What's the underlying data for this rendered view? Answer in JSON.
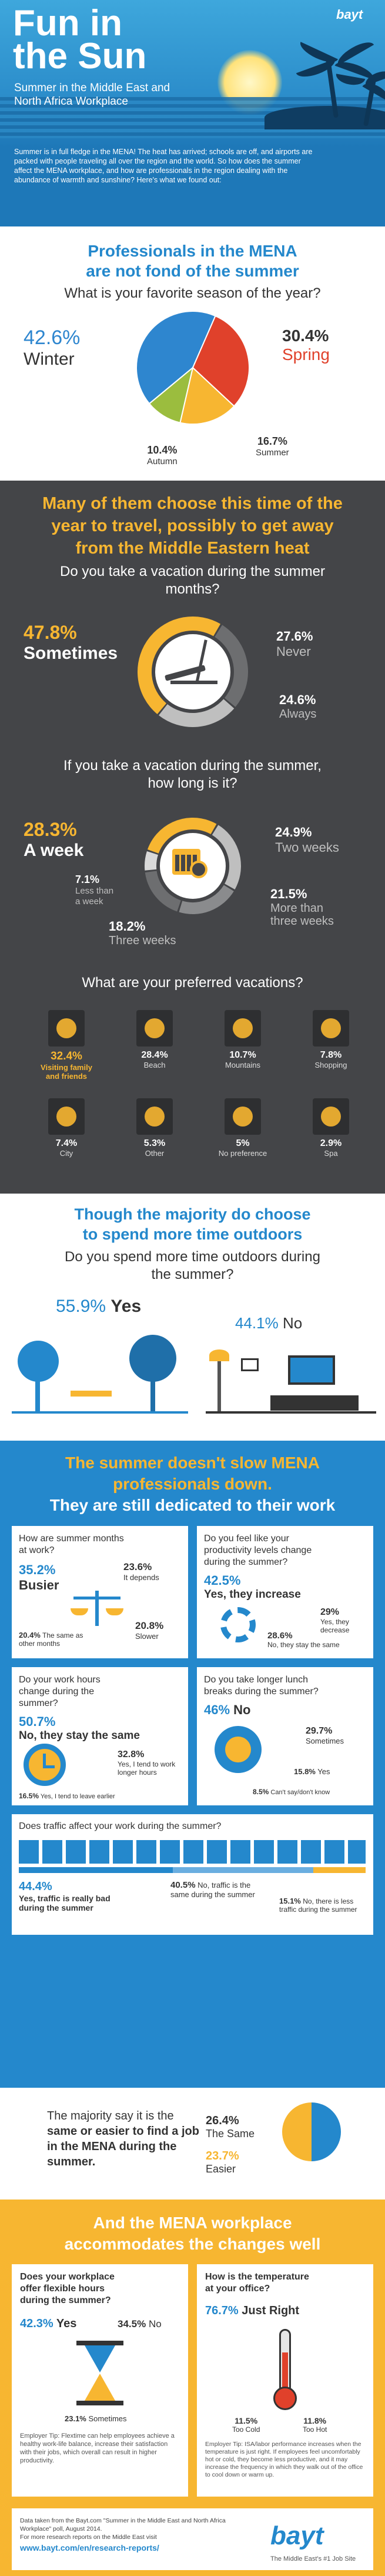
{
  "header": {
    "title_line1": "Fun in",
    "title_line2": "the Sun",
    "subtitle": "Summer in the Middle East and North Africa Workplace",
    "logo": "bayt",
    "intro": "Summer is in full fledge in the MENA! The heat has arrived; schools are off, and airports are packed with people traveling all over the region and the world. So how does the summer affect the MENA workplace, and how are professionals in the region dealing with the abundance of warmth and sunshine? Here's what we found out:"
  },
  "season": {
    "title_line1": "Professionals in the MENA",
    "title_line2": "are not fond of the summer",
    "question": "What is your favorite season of the year?",
    "colors": {
      "winter": "#2e86cf",
      "spring": "#e0412b",
      "summer": "#f7b631",
      "autumn": "#9bbd3e"
    },
    "winter_pct": "42.6%",
    "winter_label": "Winter",
    "spring_pct": "30.4%",
    "spring_label": "Spring",
    "summer_pct": "16.7%",
    "summer_label": "Summer",
    "autumn_pct": "10.4%",
    "autumn_label": "Autumn",
    "values": [
      42.6,
      30.4,
      16.7,
      10.4
    ]
  },
  "vacation": {
    "title_line1": "Many of them choose this time of the",
    "title_line2": "year to travel, possibly to get away",
    "title_line3": "from the Middle Eastern heat",
    "q1_line1": "Do you take a vacation during the summer",
    "q1_line2": "months?",
    "sometimes_pct": "47.8%",
    "sometimes_label": "Sometimes",
    "never_pct": "27.6%",
    "never_label": "Never",
    "always_pct": "24.6%",
    "always_label": "Always",
    "q1_values": [
      47.8,
      27.6,
      24.6
    ],
    "q2_line1": "If you take a vacation during the summer,",
    "q2_line2": "how long is it?",
    "week_pct": "28.3%",
    "week_label": "A week",
    "two_weeks_pct": "24.9%",
    "two_weeks_label": "Two weeks",
    "less_week_pct": "7.1%",
    "less_week_line1": "Less than",
    "less_week_line2": "a week",
    "more_three_pct": "21.5%",
    "more_three_line1": "More than",
    "more_three_line2": "three weeks",
    "three_weeks_pct": "18.2%",
    "three_weeks_label": "Three weeks",
    "q2_values": [
      28.3,
      24.9,
      21.5,
      18.2,
      7.1
    ],
    "q3": "What are your preferred vacations?",
    "prefs": [
      {
        "pct": "32.4%",
        "label": "Visiting family and friends",
        "icon": "family-icon"
      },
      {
        "pct": "28.4%",
        "label": "Beach",
        "icon": "beach-umbrella-icon"
      },
      {
        "pct": "10.7%",
        "label": "Mountains",
        "icon": "mountain-icon"
      },
      {
        "pct": "7.8%",
        "label": "Shopping",
        "icon": "shopping-bag-icon"
      },
      {
        "pct": "7.4%",
        "label": "City",
        "icon": "city-icon"
      },
      {
        "pct": "5.3%",
        "label": "Other",
        "icon": "question-icon"
      },
      {
        "pct": "5%",
        "label": "No preference",
        "icon": "no-sign-icon"
      },
      {
        "pct": "2.9%",
        "label": "Spa",
        "icon": "spa-icon"
      }
    ]
  },
  "outdoors": {
    "title_line1": "Though the majority do choose",
    "title_line2": "to spend more time outdoors",
    "question_line1": "Do you spend more time outdoors during",
    "question_line2": "the summer?",
    "yes_pct": "55.9%",
    "yes_label": "Yes",
    "no_pct": "44.1%",
    "no_label": "No"
  },
  "work": {
    "title_line1": "The summer doesn't slow MENA",
    "title_line2": "professionals down.",
    "title_line3": "They are still dedicated to their work",
    "c1": {
      "q1": "How are summer months",
      "q2": "at work?",
      "busier_pct": "35.2%",
      "busier": "Busier",
      "depends_pct": "23.6%",
      "depends": "It depends",
      "same_pct": "20.4%",
      "same": "The same as other months",
      "slower_pct": "20.8%",
      "slower": "Slower"
    },
    "c2": {
      "q1": "Do you feel like your",
      "q2": "productivity levels change",
      "q3": "during the summer?",
      "yes_pct": "42.5%",
      "yes": "Yes, they increase",
      "decrease_pct": "29%",
      "decrease": "Yes, they decrease",
      "same_pct": "28.6%",
      "same": "No, they stay the same"
    },
    "c3": {
      "q1": "Do your work hours",
      "q2": "change during the",
      "q3": "summer?",
      "same_pct": "50.7%",
      "same": "No, they stay the same",
      "longer_pct": "32.8%",
      "longer": "Yes, I tend to work longer hours",
      "earlier_pct": "16.5%",
      "earlier": "Yes, I tend to leave earlier"
    },
    "c4": {
      "q1": "Do you take longer lunch",
      "q2": "breaks during the summer?",
      "no_pct": "46%",
      "no": "No",
      "sometimes_pct": "29.7%",
      "sometimes": "Sometimes",
      "yes_pct": "15.8%",
      "yes": "Yes",
      "cant_pct": "8.5%",
      "cant": "Can't say/don't know"
    },
    "c5": {
      "q": "Does traffic affect your work during the summer?",
      "bad_pct": "44.4%",
      "bad": "Yes, traffic is really bad during the summer",
      "same_pct": "40.5%",
      "same": "No, traffic is the same during the summer",
      "less_pct": "15.1%",
      "less": "No, there is less traffic during the summer",
      "values": [
        44.4,
        40.5,
        15.1
      ]
    }
  },
  "job": {
    "text_pre": "The majority say it is the",
    "text_bold": "same or easier to find a job in the MENA during the summer.",
    "same_pct": "26.4%",
    "same": "The Same",
    "easier_pct": "23.7%",
    "easier": "Easier"
  },
  "mena": {
    "title_line1": "And the MENA workplace",
    "title_line2": "accommodates the changes well",
    "left": {
      "q1": "Does your workplace",
      "q2": "offer flexible hours",
      "q3": "during the summer?",
      "yes_pct": "42.3%",
      "yes": "Yes",
      "no_pct": "34.5%",
      "no": "No",
      "sometimes_pct": "23.1%",
      "sometimes": "Sometimes",
      "tip": "Employer Tip: Flextime can help employees achieve a healthy work-life balance, increase their satisfaction with their jobs, which overall can result in higher productivity."
    },
    "right": {
      "q1": "How is the temperature",
      "q2": "at your office?",
      "right_pct": "76.7%",
      "right": "Just Right",
      "cold_pct": "11.5%",
      "cold": "Too Cold",
      "hot_pct": "11.8%",
      "hot": "Too Hot",
      "tip": "Employer Tip: ISA/labor performance increases when the temperature is just right. If employees feel uncomfortably hot or cold, they become less productive, and it may increase the frequency in which they walk out of the office to cool down or warm up."
    },
    "source_line1": "Data taken from the Bayt.com \"Summer in the Middle East and North Africa Workplace\" poll, August 2014.",
    "source_line2": "For more research reports on the Middle East visit",
    "source_url": "www.bayt.com/en/research-reports/",
    "logo": "bayt",
    "tagline": "The Middle East's #1 Job Site"
  }
}
